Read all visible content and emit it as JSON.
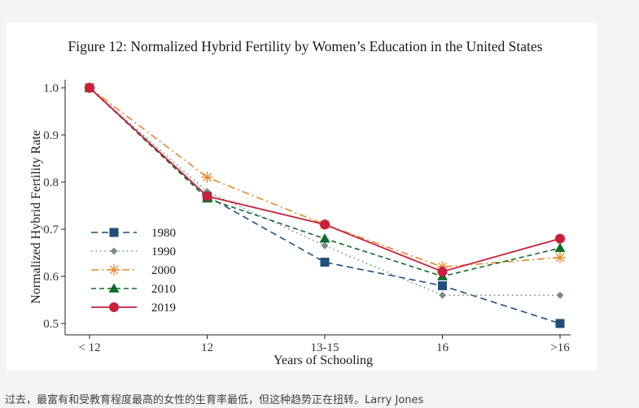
{
  "page": {
    "bottom_text": "过去，最富有和受教育程度最高的女性的生育率最低，但这种趋势正在扭转。Larry Jones"
  },
  "chart_data": {
    "type": "line",
    "title": "Figure 12: Normalized Hybrid Fertility by Women’s Education in the United States",
    "xlabel": "Years of Schooling",
    "ylabel": "Normalized Hybrid Fertility Rate",
    "categories": [
      "< 12",
      "12",
      "13-15",
      "16",
      ">16"
    ],
    "ylim": [
      0.5,
      1.0
    ],
    "yticks": [
      0.5,
      0.6,
      0.7,
      0.8,
      0.9,
      1.0
    ],
    "ytick_labels": [
      "0.5",
      "0.6",
      "0.7",
      "0.8",
      "0.9",
      "1.0"
    ],
    "grid": false,
    "legend_position": "bottom-left",
    "series": [
      {
        "name": "1980",
        "values": [
          1.0,
          0.77,
          0.63,
          0.58,
          0.5
        ],
        "color": "#1f4e79",
        "dash": "8,5",
        "marker": "square",
        "width": 1.6
      },
      {
        "name": "1990",
        "values": [
          1.0,
          0.78,
          0.665,
          0.56,
          0.56
        ],
        "color": "#7a8b88",
        "dash": "1.5,4",
        "marker": "diamond",
        "width": 1.6
      },
      {
        "name": "2000",
        "values": [
          1.0,
          0.81,
          0.71,
          0.62,
          0.64
        ],
        "color": "#e8892b",
        "dash": "9,4,2,4",
        "marker": "asterisk",
        "width": 1.6
      },
      {
        "name": "2010",
        "values": [
          1.0,
          0.765,
          0.68,
          0.6,
          0.66
        ],
        "color": "#0f6b2a",
        "dash": "6,4",
        "marker": "triangle",
        "width": 1.6
      },
      {
        "name": "2019",
        "values": [
          1.0,
          0.77,
          0.71,
          0.61,
          0.68
        ],
        "color": "#c8203c",
        "dash": "",
        "marker": "circle",
        "width": 1.8
      }
    ]
  }
}
